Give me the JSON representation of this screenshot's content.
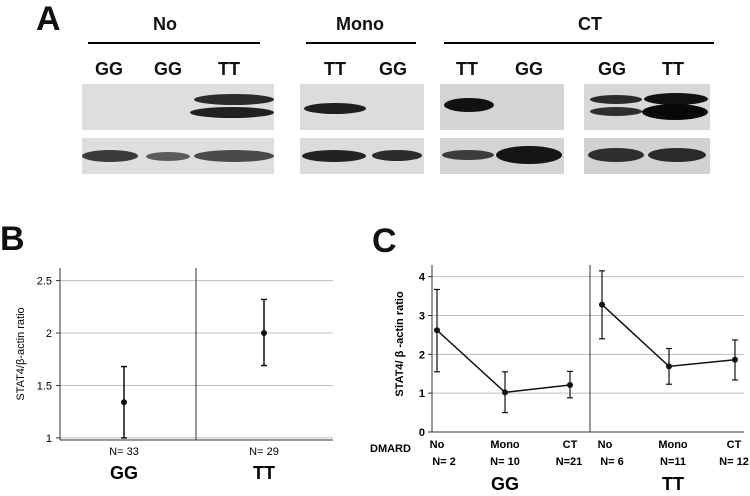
{
  "panel_a": {
    "letter": "A",
    "groups": [
      {
        "title": "No",
        "lanes": [
          "GG",
          "GG",
          "TT"
        ]
      },
      {
        "title": "Mono",
        "lanes": [
          "TT",
          "GG"
        ]
      },
      {
        "title": "CT",
        "lanes": [
          "TT",
          "GG",
          "GG",
          "TT"
        ]
      }
    ]
  },
  "panel_b": {
    "letter": "B",
    "ylabel": "STAT4/β-actin ratio",
    "groups": [
      "GG",
      "TT"
    ],
    "n_labels": [
      "N= 33",
      "N= 29"
    ],
    "y_ticks": [
      "1",
      "1.5",
      "2",
      "2.5"
    ]
  },
  "panel_c": {
    "letter": "C",
    "ylabel": "STAT4/ β -actin ratio",
    "row_label": "DMARD",
    "groups": [
      "GG",
      "TT"
    ],
    "categories": [
      "No",
      "Mono",
      "CT"
    ],
    "n_labels_gg": [
      "N= 2",
      "N= 10",
      "N=21"
    ],
    "n_labels_tt": [
      "N= 6",
      "N=11",
      "N= 12"
    ],
    "y_ticks": [
      "0",
      "1",
      "2",
      "3",
      "4"
    ]
  },
  "chart_data": [
    {
      "type": "scatter",
      "title": "",
      "xlabel": "",
      "ylabel": "STAT4/β-actin ratio",
      "categories": [
        "GG",
        "TT"
      ],
      "means": [
        1.34,
        2.0
      ],
      "lower": [
        1.0,
        1.69
      ],
      "upper": [
        1.68,
        2.32
      ],
      "ylim": [
        0.98,
        2.62
      ],
      "grid": true
    },
    {
      "type": "line",
      "title": "",
      "xlabel": "DMARD",
      "ylabel": "STAT4/ β -actin ratio",
      "categories": [
        "No",
        "Mono",
        "CT"
      ],
      "series": [
        {
          "name": "GG",
          "values": [
            2.62,
            1.02,
            1.21
          ],
          "lower": [
            1.55,
            0.5,
            0.88
          ],
          "upper": [
            3.67,
            1.55,
            1.56
          ]
        },
        {
          "name": "TT",
          "values": [
            3.28,
            1.69,
            1.86
          ],
          "lower": [
            2.4,
            1.23,
            1.34
          ],
          "upper": [
            4.15,
            2.15,
            2.37
          ]
        }
      ],
      "ylim": [
        0,
        4.3
      ],
      "grid": true
    }
  ]
}
